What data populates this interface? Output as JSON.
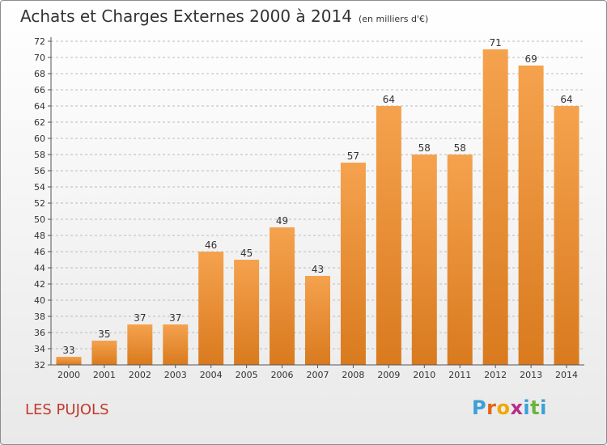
{
  "title": "Achats et Charges Externes 2000 à 2014",
  "subtitle": "(en milliers d'€)",
  "commune": "LES PUJOLS",
  "brand": {
    "letters": [
      "P",
      "r",
      "o",
      "x",
      "i",
      "t",
      "i"
    ],
    "colors": [
      "#3aa0d8",
      "#e0641b",
      "#f0a800",
      "#b52f8a",
      "#3aa0d8",
      "#6cb33f",
      "#3aa0d8"
    ]
  },
  "colors": {
    "bar_light": "#f5a24e",
    "bar_dark": "#d97a1e",
    "axis": "#555555",
    "grid": "#bbbbbb",
    "commune_text": "#c0392b"
  },
  "chart_data": {
    "type": "bar",
    "categories": [
      "2000",
      "2001",
      "2002",
      "2003",
      "2004",
      "2005",
      "2006",
      "2007",
      "2008",
      "2009",
      "2010",
      "2011",
      "2012",
      "2013",
      "2014"
    ],
    "values": [
      33,
      35,
      37,
      37,
      46,
      45,
      49,
      43,
      57,
      64,
      58,
      58,
      71,
      69,
      64
    ],
    "title": "Achats et Charges Externes 2000 à 2014",
    "subtitle": "(en milliers d'€)",
    "xlabel": "",
    "ylabel": "",
    "ylim": [
      32,
      72
    ],
    "ytick_step": 2,
    "grid": "horizontal dashed",
    "legend": "none"
  }
}
